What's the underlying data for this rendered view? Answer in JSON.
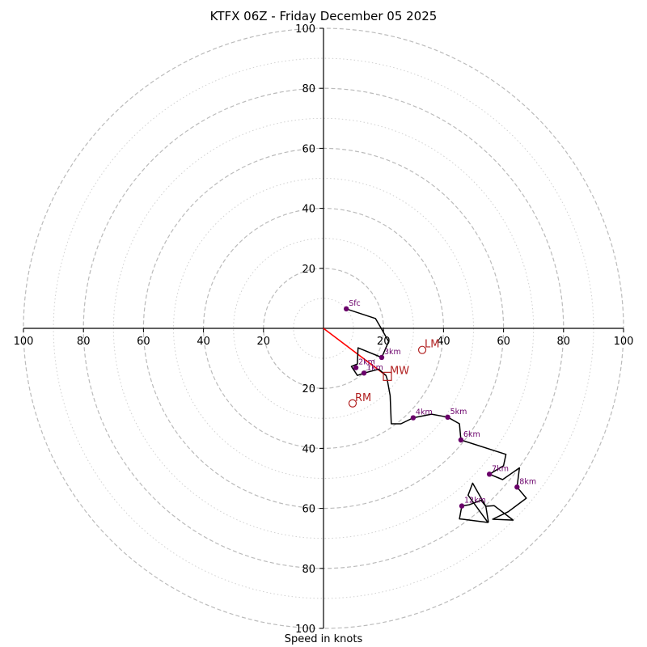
{
  "chart_data": {
    "type": "hodograph",
    "title": "KTFX 06Z - Friday December 05 2025",
    "xlabel": "Speed in knots",
    "axis_range": [
      -100,
      100
    ],
    "ring_major": [
      20,
      40,
      60,
      80,
      100
    ],
    "ring_minor": [
      10,
      30,
      50,
      70,
      90
    ],
    "tick_labels": {
      "left": [
        "100",
        "80",
        "60",
        "40",
        "20"
      ],
      "right": [
        "20",
        "40",
        "60",
        "80",
        "100"
      ],
      "top": [
        "100",
        "80",
        "60",
        "40",
        "20"
      ],
      "bottom": [
        "20",
        "40",
        "60",
        "80",
        "100"
      ]
    },
    "trace": [
      [
        7.6,
        6.5
      ],
      [
        17.3,
        3.3
      ],
      [
        19.0,
        0.4
      ],
      [
        21.7,
        -4.4
      ],
      [
        19.4,
        -9.7
      ],
      [
        11.5,
        -6.5
      ],
      [
        11.3,
        -11.9
      ],
      [
        9.3,
        -12.7
      ],
      [
        11.3,
        -15.7
      ],
      [
        13.5,
        -14.9
      ],
      [
        18.4,
        -13.6
      ],
      [
        20.8,
        -15.7
      ],
      [
        21.2,
        -16.9
      ],
      [
        22.2,
        -22.4
      ],
      [
        22.6,
        -31.8
      ],
      [
        25.8,
        -31.8
      ],
      [
        29.9,
        -29.8
      ],
      [
        36.0,
        -28.6
      ],
      [
        41.4,
        -29.6
      ],
      [
        45.3,
        -31.8
      ],
      [
        45.8,
        -37.2
      ],
      [
        60.8,
        -42.0
      ],
      [
        60.0,
        -45.8
      ],
      [
        55.3,
        -48.6
      ],
      [
        59.7,
        -50.4
      ],
      [
        65.3,
        -46.5
      ],
      [
        64.5,
        -52.9
      ],
      [
        67.6,
        -56.6
      ],
      [
        61.6,
        -61.1
      ],
      [
        56.4,
        -63.6
      ],
      [
        63.2,
        -63.9
      ],
      [
        56.9,
        -59.1
      ],
      [
        54.1,
        -59.3
      ],
      [
        52.5,
        -57.3
      ],
      [
        48.6,
        -58.8
      ],
      [
        46.1,
        -59.2
      ],
      [
        45.3,
        -63.5
      ],
      [
        46.4,
        -63.6
      ],
      [
        54.8,
        -64.7
      ],
      [
        48.2,
        -55.6
      ],
      [
        49.7,
        -51.6
      ],
      [
        54.1,
        -59.3
      ],
      [
        55.0,
        -64.7
      ]
    ],
    "height_markers": [
      {
        "label": "Sfc",
        "u": 7.6,
        "v": 6.5
      },
      {
        "label": "1km",
        "u": 13.5,
        "v": -14.9
      },
      {
        "label": "2km",
        "u": 10.8,
        "v": -13.1
      },
      {
        "label": "3km",
        "u": 19.4,
        "v": -9.7
      },
      {
        "label": "4km",
        "u": 29.9,
        "v": -29.8
      },
      {
        "label": "5km",
        "u": 41.4,
        "v": -29.6
      },
      {
        "label": "6km",
        "u": 45.8,
        "v": -37.2
      },
      {
        "label": "7km",
        "u": 55.3,
        "v": -48.6
      },
      {
        "label": "8km",
        "u": 64.5,
        "v": -52.9
      },
      {
        "label": "12km",
        "u": 46.1,
        "v": -59.2
      }
    ],
    "storm_motion": [
      {
        "label": "RM",
        "u": 9.7,
        "v": -25.0,
        "marker": "circle"
      },
      {
        "label": "LM",
        "u": 32.9,
        "v": -7.2,
        "marker": "circle"
      },
      {
        "label": "MW",
        "u": 21.3,
        "v": -16.0,
        "marker": "square"
      }
    ],
    "shear_vector": {
      "from": [
        0,
        0
      ],
      "to": [
        20.8,
        -15.7
      ]
    },
    "colors": {
      "trace": "#000000",
      "markers": "#6a006a",
      "storm": "#b22222",
      "shear": "#ff0000",
      "grid": "#bbbbbb"
    }
  }
}
